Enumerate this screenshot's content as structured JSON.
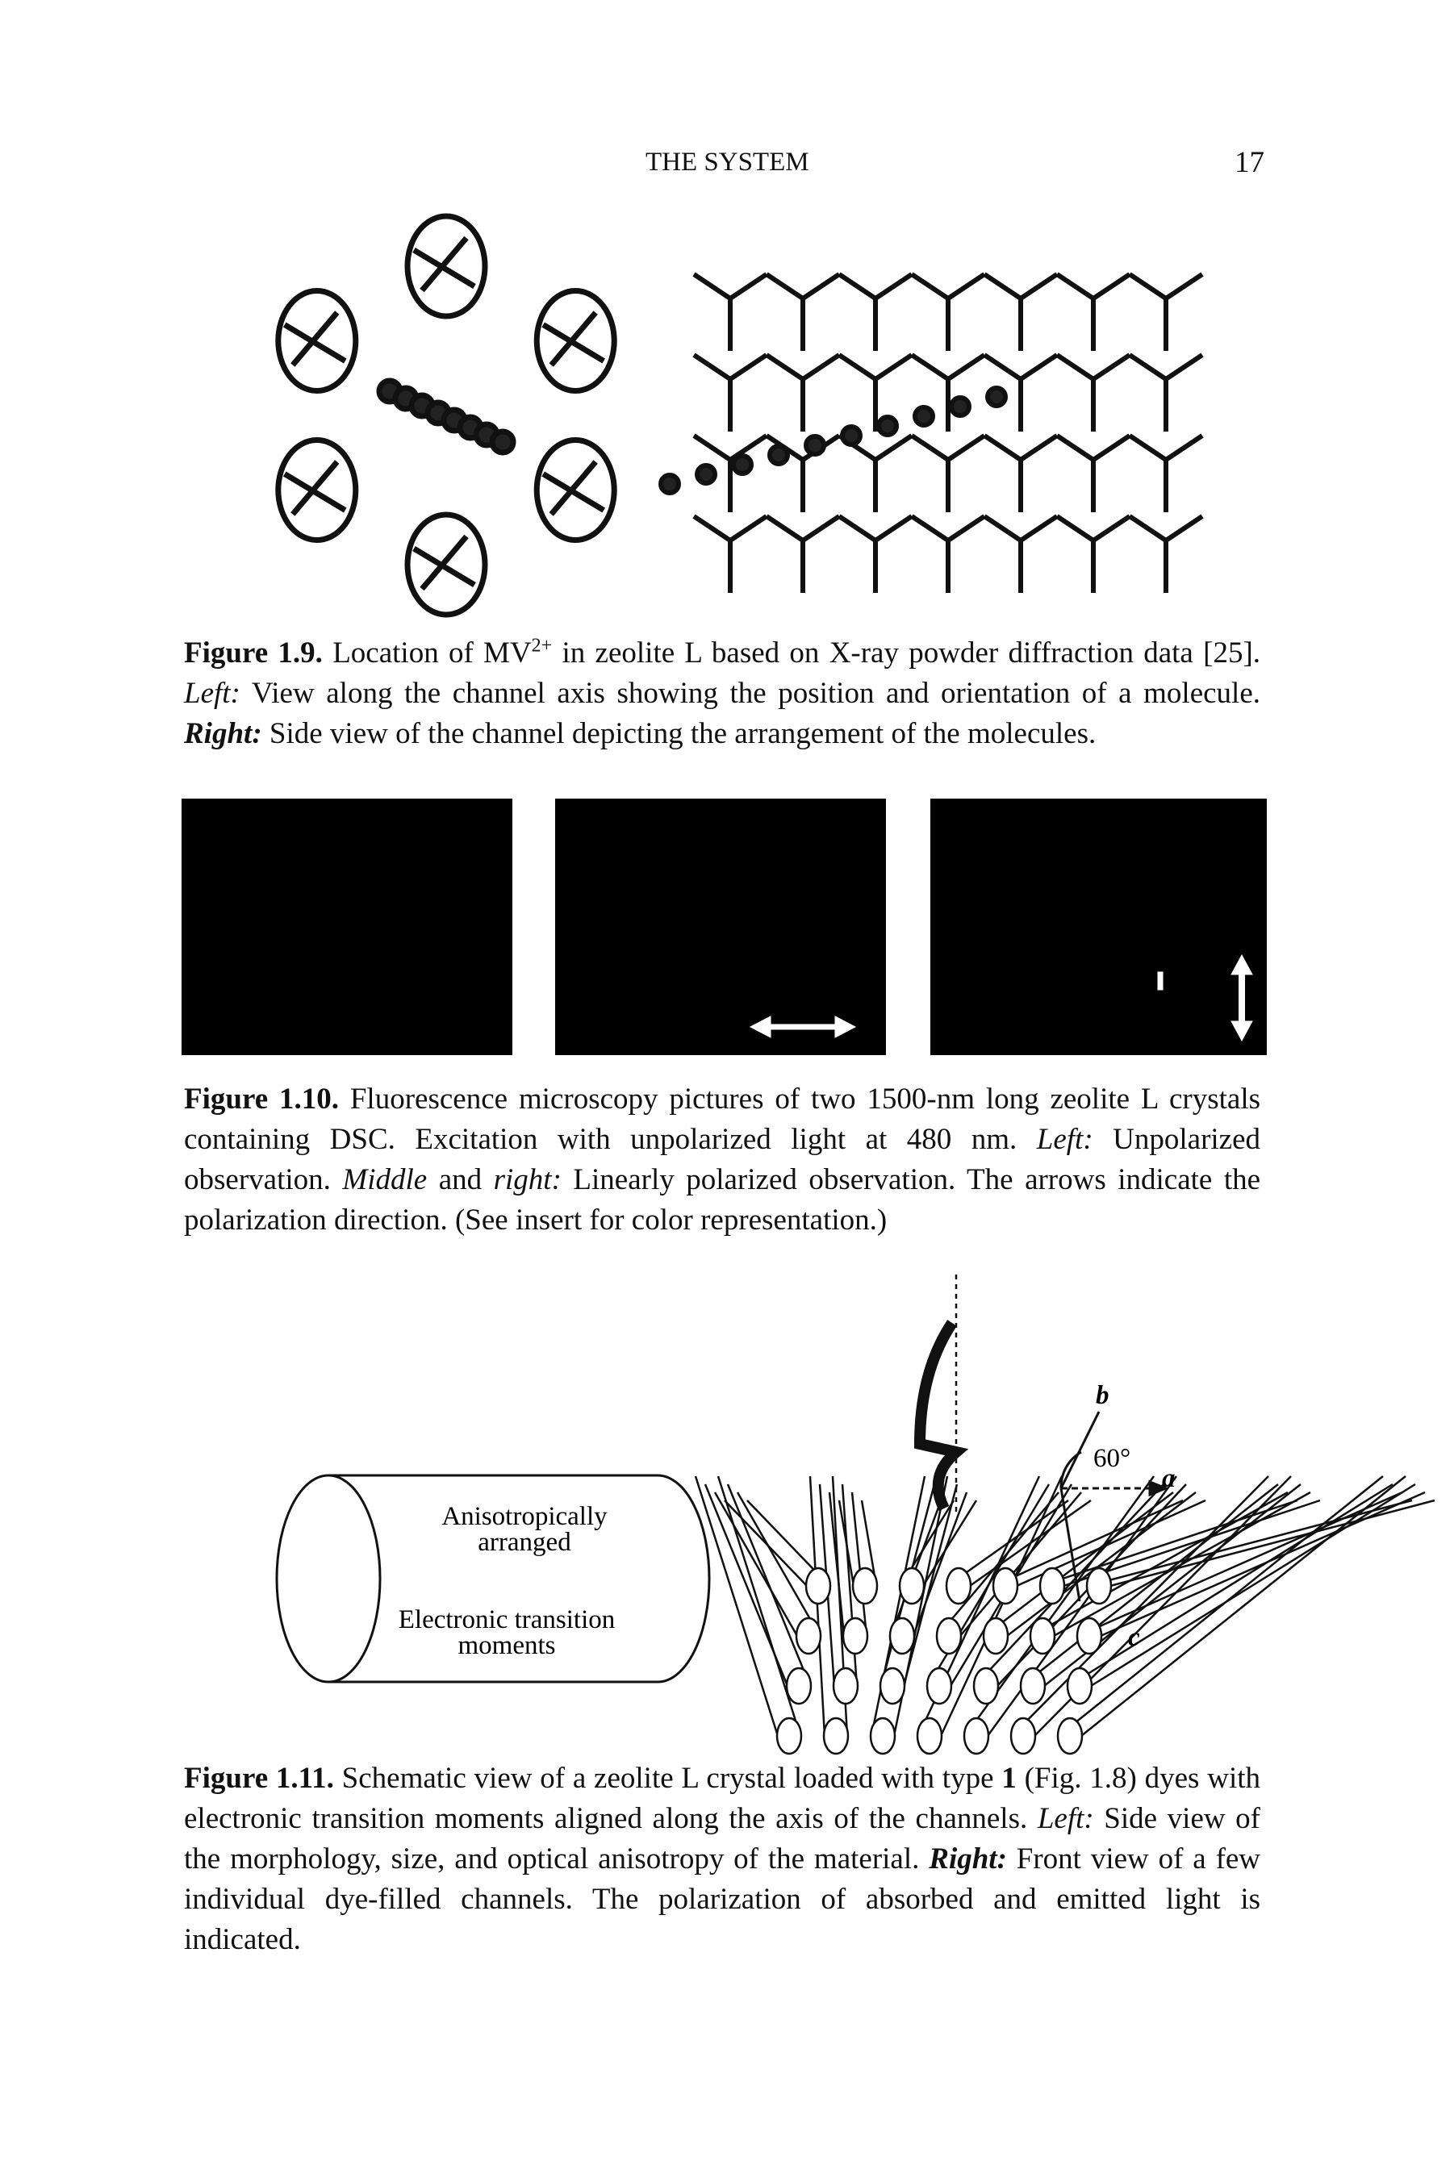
{
  "header": {
    "title": "THE SYSTEM",
    "page_number": "17"
  },
  "figure_1_9": {
    "caption": [
      "Figure 1.9.",
      "Location of MV",
      "2+",
      "in zeolite L based on X-ray powder diffraction data [25].",
      "Left:",
      "View along the channel axis showing the position and orientation of a molecule.",
      "Right:",
      "Side view of the channel depicting the arrangement of the molecules."
    ]
  },
  "figure_1_10": {
    "caption": [
      "Figure 1.10.",
      "Fluorescence microscopy pictures of two 1500-nm long zeolite L crystals containing DSC. Excitation with unpolarized light at 480 nm.",
      "Left:",
      "Unpolarized observation.",
      "Middle",
      "and",
      "right:",
      "Linearly polarized observation. The arrows indicate the polarization direction. (See insert for color representation.)"
    ]
  },
  "figure_1_11": {
    "cylinder_labels": [
      "Anisotropically",
      "arranged",
      "Electronic transition",
      "moments"
    ],
    "axis_labels": [
      "b",
      "60°",
      "a",
      "c"
    ],
    "caption": [
      "Figure 1.11.",
      "Schematic view of a zeolite L crystal loaded with type",
      "1",
      "(Fig. 1.8) dyes with electronic transition moments aligned along the axis of the channels.",
      "Left:",
      "Side view of the morphology, size, and optical anisotropy of the material.",
      "Right:",
      "Front view of a few individual dye-filled channels. The polarization of absorbed and emitted light is indicated."
    ]
  }
}
